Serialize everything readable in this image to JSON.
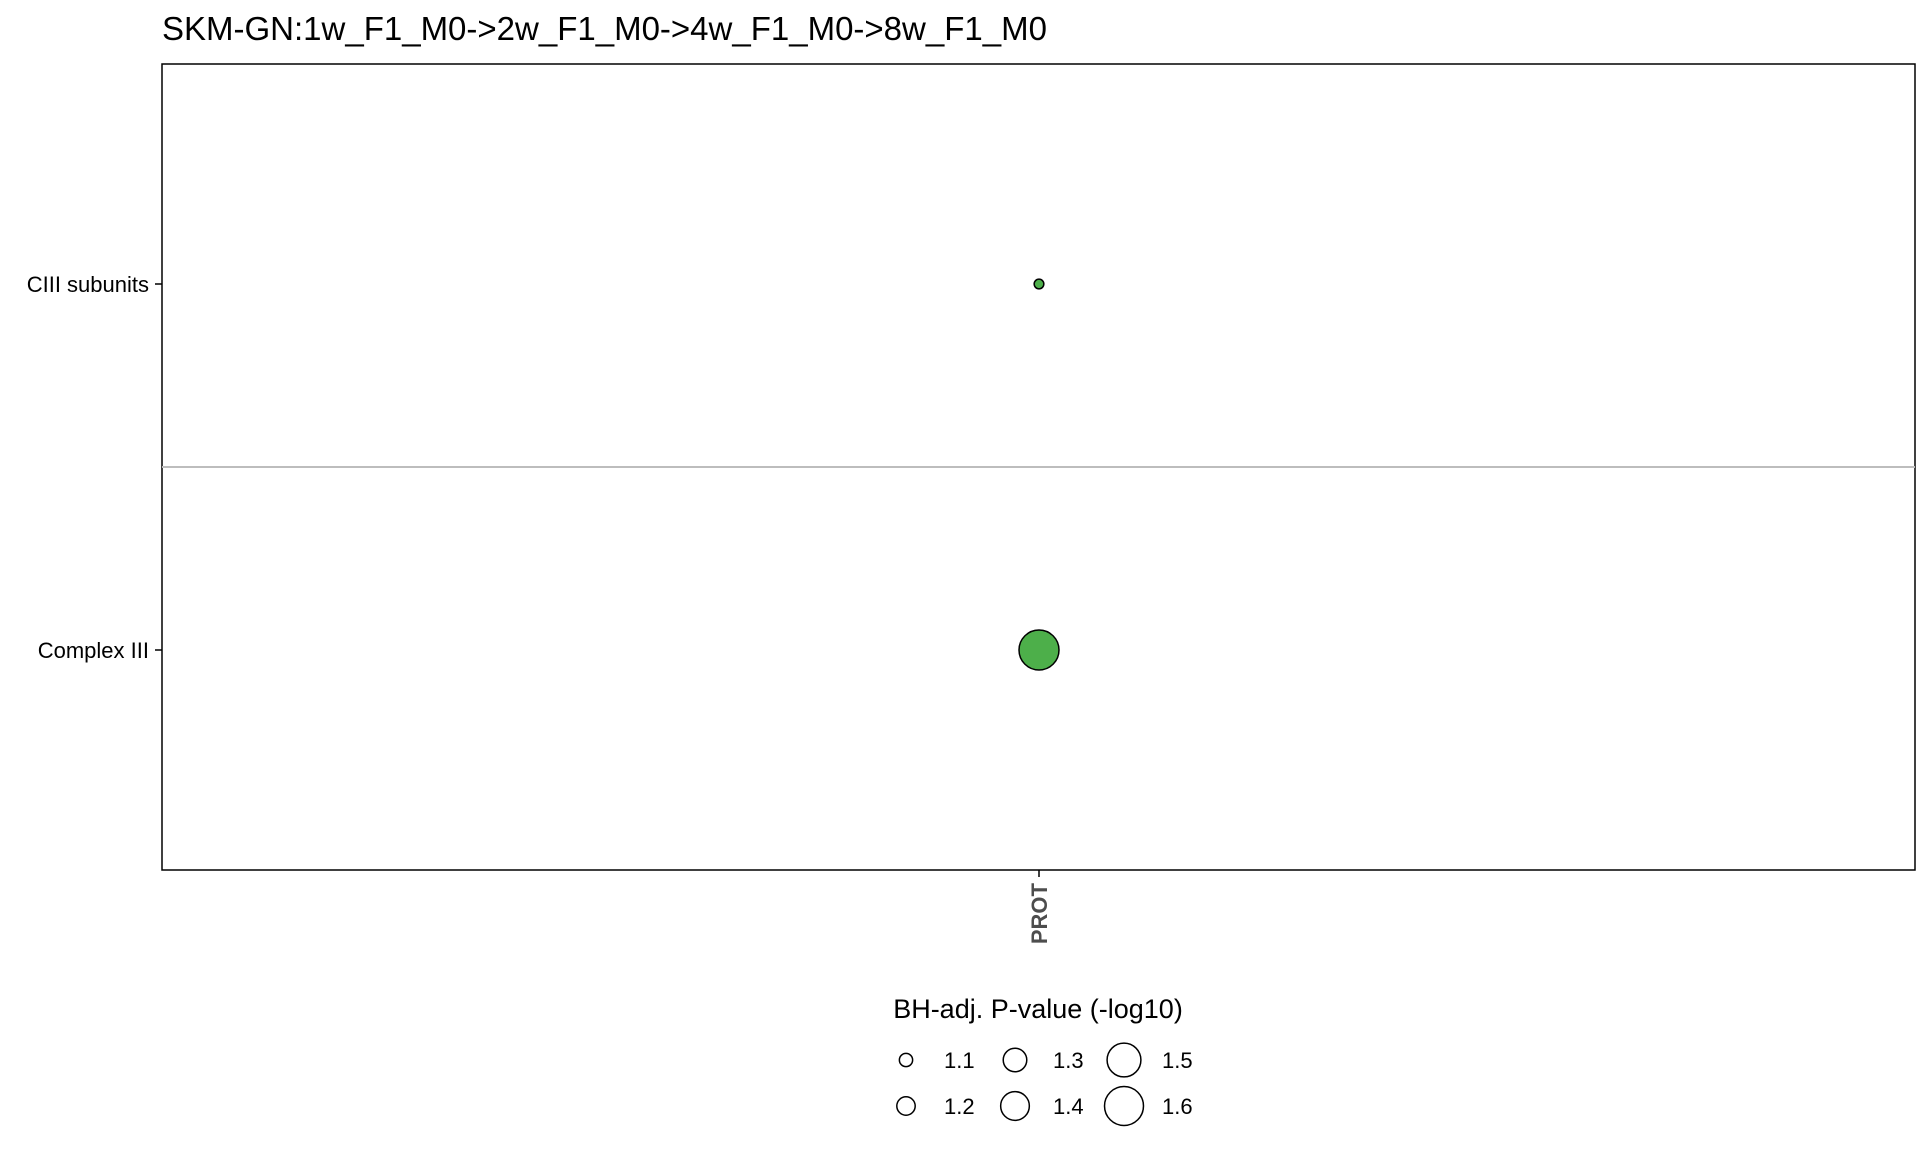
{
  "chart_data": {
    "type": "scatter",
    "title": "SKM-GN:1w_F1_M0->2w_F1_M0->4w_F1_M0->8w_F1_M0",
    "x_categories": [
      "PROT"
    ],
    "y_categories": [
      "CIII subunits",
      "Complex III"
    ],
    "points": [
      {
        "x": "PROT",
        "y": "CIII subunits",
        "size": 1.03,
        "color": "#4daf4a"
      },
      {
        "x": "PROT",
        "y": "Complex III",
        "size": 1.62,
        "color": "#4daf4a"
      }
    ],
    "legend": {
      "title": "BH-adj. P-value (-log10)",
      "position": "bottom",
      "items": [
        {
          "label": "1.1",
          "value": 1.1
        },
        {
          "label": "1.3",
          "value": 1.3
        },
        {
          "label": "1.5",
          "value": 1.5
        },
        {
          "label": "1.2",
          "value": 1.2
        },
        {
          "label": "1.4",
          "value": 1.4
        },
        {
          "label": "1.6",
          "value": 1.6
        }
      ]
    },
    "grid": false,
    "facet_divider": true
  }
}
